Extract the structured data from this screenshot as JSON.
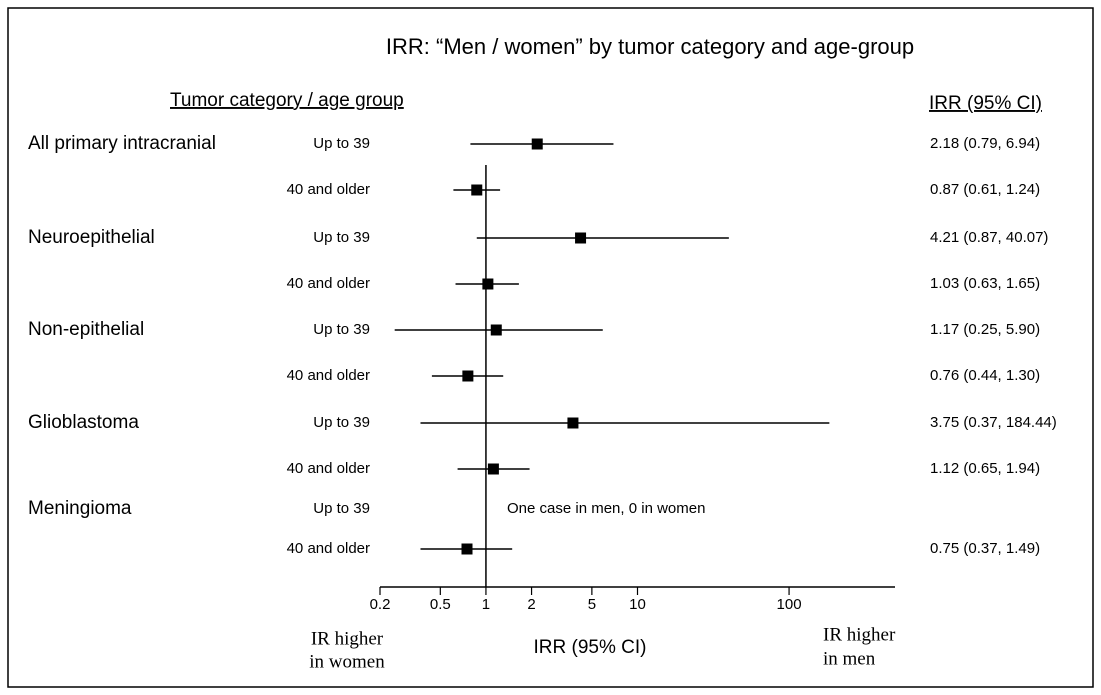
{
  "chart_data": {
    "type": "forest",
    "title": "IRR: “Men / women” by tumor category and age-group",
    "row_header": "Tumor category / age group",
    "value_header": "IRR (95% CI)",
    "x_label": "IRR (95% CI)",
    "left_note": [
      "IR higher",
      "in women"
    ],
    "right_note": [
      "IR higher",
      "in men"
    ],
    "annotation": "One case in men, 0 in women",
    "group_labels": [
      "All primary intracranial",
      null,
      "Neuroepithelial",
      null,
      "Non-epithelial",
      null,
      "Glioblastoma",
      null,
      "Meningioma",
      null
    ],
    "categories": [
      "Up to 39",
      "40 and older",
      "Up to 39",
      "40 and older",
      "Up to 39",
      "40 and older",
      "Up to 39",
      "40 and older",
      "Up to 39",
      "40 and older"
    ],
    "values": [
      2.18,
      0.87,
      4.21,
      1.03,
      1.17,
      0.76,
      3.75,
      1.12,
      null,
      0.75
    ],
    "ci_low": [
      0.79,
      0.61,
      0.87,
      0.63,
      0.25,
      0.44,
      0.37,
      0.65,
      null,
      0.37
    ],
    "ci_high": [
      6.94,
      1.24,
      40.07,
      1.65,
      5.9,
      1.3,
      184.44,
      1.94,
      null,
      1.49
    ],
    "value_labels": [
      "2.18 (0.79, 6.94)",
      "0.87 (0.61, 1.24)",
      "4.21 (0.87, 40.07)",
      "1.03 (0.63, 1.65)",
      "1.17 (0.25, 5.90)",
      "0.76 (0.44, 1.30)",
      "3.75 (0.37, 184.44)",
      "1.12 (0.65, 1.94)",
      null,
      "0.75 (0.37, 1.49)"
    ],
    "reference_x": 1,
    "xscale": "log",
    "xlim": [
      0.2,
      500
    ],
    "xticks": [
      0.2,
      0.5,
      1,
      2,
      5,
      10,
      100
    ],
    "color": "#000000"
  }
}
